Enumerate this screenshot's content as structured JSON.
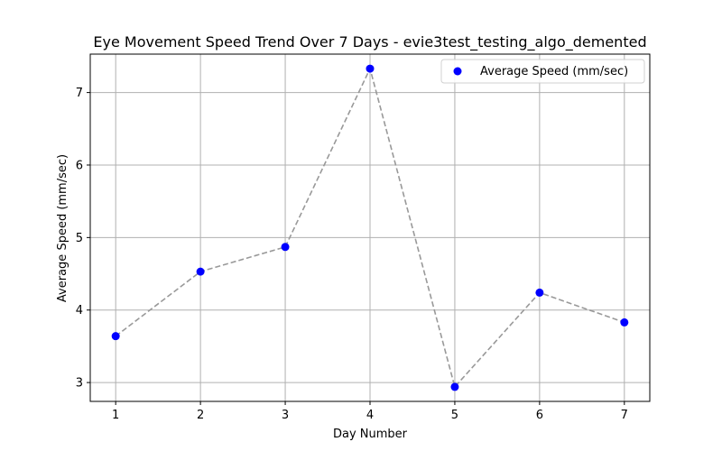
{
  "chart_data": {
    "type": "scatter",
    "title": "Eye Movement Speed Trend Over 7 Days - evie3test_testing_algo_demented",
    "xlabel": "Day Number",
    "ylabel": "Average Speed (mm/sec)",
    "x": [
      1,
      2,
      3,
      4,
      5,
      6,
      7
    ],
    "series": [
      {
        "name": "Average Speed (mm/sec)",
        "values": [
          3.64,
          4.53,
          4.87,
          7.33,
          2.94,
          4.24,
          3.83
        ],
        "marker_color": "#0000ff",
        "line_color": "#999999",
        "line_style": "dashed"
      }
    ],
    "xlim": [
      0.7,
      7.3
    ],
    "ylim": [
      2.74,
      7.53
    ],
    "xticks": [
      1,
      2,
      3,
      4,
      5,
      6,
      7
    ],
    "yticks": [
      3,
      4,
      5,
      6,
      7
    ],
    "grid": true,
    "legend_position": "top-right"
  }
}
